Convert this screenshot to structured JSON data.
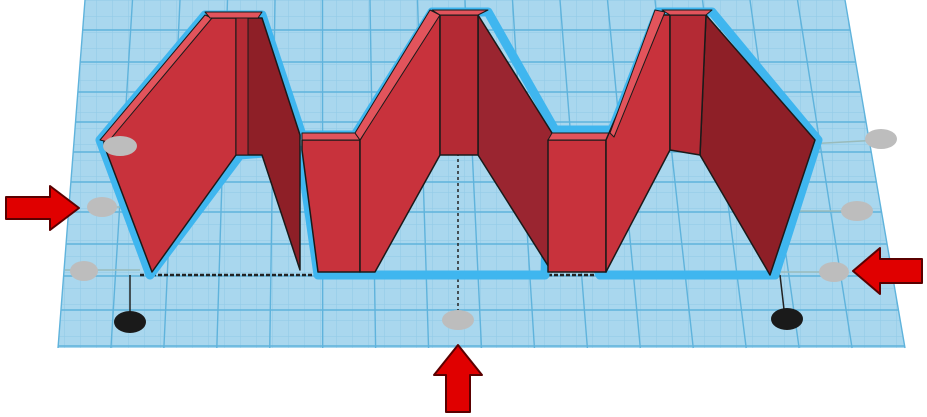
{
  "scene": {
    "kind": "3d-workplane-editor",
    "workplane_color": "#a9d7ee",
    "grid_line_color": "#5fb3dc",
    "shape_color": "#c8323c",
    "shape_dark_color": "#8e1f27",
    "selection_outline_color": "#3fb6ef",
    "handle_gray_color": "#bdbdbd",
    "handle_black_color": "#1a1a1a",
    "arrow_color": "#e00000",
    "selected_object": "zigzag-wall",
    "resize_handles": {
      "gray_count": 7,
      "black_count": 2
    },
    "arrow_callouts": [
      {
        "points": "right",
        "target": "left-side-handle"
      },
      {
        "points": "left",
        "target": "right-side-handle"
      },
      {
        "points": "up",
        "target": "front-center-handle"
      }
    ]
  }
}
